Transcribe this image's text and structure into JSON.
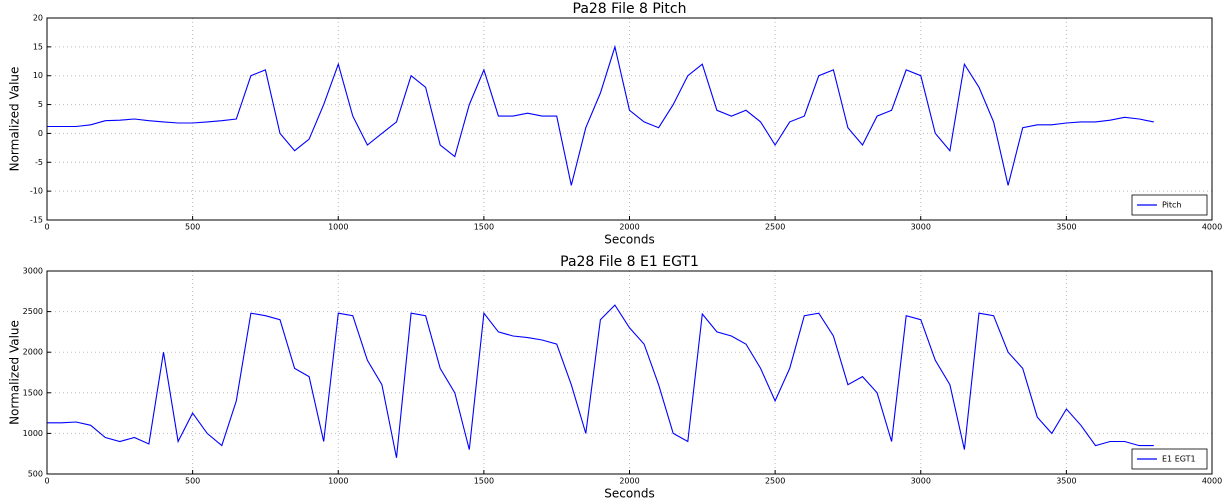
{
  "chart_data": [
    {
      "type": "line",
      "title": "Pa28 File 8 Pitch",
      "xlabel": "Seconds",
      "ylabel": "Normalized Value",
      "x": [
        0,
        50,
        100,
        150,
        200,
        250,
        300,
        350,
        400,
        450,
        500,
        550,
        600,
        650,
        700,
        750,
        800,
        850,
        900,
        950,
        1000,
        1050,
        1100,
        1150,
        1200,
        1250,
        1300,
        1350,
        1400,
        1450,
        1500,
        1550,
        1600,
        1650,
        1700,
        1750,
        1800,
        1850,
        1900,
        1950,
        2000,
        2050,
        2100,
        2150,
        2200,
        2250,
        2300,
        2350,
        2400,
        2450,
        2500,
        2550,
        2600,
        2650,
        2700,
        2750,
        2800,
        2850,
        2900,
        2950,
        3000,
        3050,
        3100,
        3150,
        3200,
        3250,
        3300,
        3350,
        3400,
        3450,
        3500,
        3550,
        3600,
        3650,
        3700,
        3750,
        3800
      ],
      "series": [
        {
          "name": "Pitch",
          "color": "#0000ff",
          "values": [
            1.2,
            1.2,
            1.2,
            1.5,
            2.2,
            2.3,
            2.5,
            2.2,
            2.0,
            1.8,
            1.8,
            2.0,
            2.2,
            2.5,
            10,
            11,
            0,
            -3,
            -1,
            5,
            12,
            3,
            -2,
            0,
            2,
            10,
            8,
            -2,
            -4,
            5,
            11,
            3,
            3,
            3.5,
            3,
            3,
            -9,
            1,
            7,
            15,
            4,
            2,
            1,
            5,
            10,
            12,
            4,
            3,
            4,
            2,
            -2,
            2,
            3,
            10,
            11,
            1,
            -2,
            3,
            4,
            11,
            10,
            0,
            -3,
            12,
            8,
            2,
            -9,
            1,
            1.5,
            1.5,
            1.8,
            2,
            2,
            2.3,
            2.8,
            2.5,
            2.0
          ]
        }
      ],
      "xlim": [
        0,
        4000
      ],
      "xticks": [
        0,
        500,
        1000,
        1500,
        2000,
        2500,
        3000,
        3500,
        4000
      ],
      "ylim": [
        -15,
        20
      ],
      "yticks": [
        -15,
        -10,
        -5,
        0,
        5,
        10,
        15,
        20
      ],
      "grid": true,
      "legend": "lower right"
    },
    {
      "type": "line",
      "title": "Pa28 File 8 E1 EGT1",
      "xlabel": "Seconds",
      "ylabel": "Normalized Value",
      "x": [
        0,
        50,
        100,
        150,
        200,
        250,
        300,
        350,
        400,
        450,
        500,
        550,
        600,
        650,
        700,
        750,
        800,
        850,
        900,
        950,
        1000,
        1050,
        1100,
        1150,
        1200,
        1250,
        1300,
        1350,
        1400,
        1450,
        1500,
        1550,
        1600,
        1650,
        1700,
        1750,
        1800,
        1850,
        1900,
        1950,
        2000,
        2050,
        2100,
        2150,
        2200,
        2250,
        2300,
        2350,
        2400,
        2450,
        2500,
        2550,
        2600,
        2650,
        2700,
        2750,
        2800,
        2850,
        2900,
        2950,
        3000,
        3050,
        3100,
        3150,
        3200,
        3250,
        3300,
        3350,
        3400,
        3450,
        3500,
        3550,
        3600,
        3650,
        3700,
        3750,
        3800
      ],
      "series": [
        {
          "name": "E1 EGT1",
          "color": "#0000ff",
          "values": [
            1130,
            1130,
            1140,
            1100,
            950,
            900,
            950,
            870,
            2000,
            900,
            1250,
            1000,
            850,
            1400,
            2480,
            2450,
            2400,
            1800,
            1700,
            900,
            2480,
            2450,
            1900,
            1600,
            700,
            2480,
            2450,
            1800,
            1500,
            800,
            2480,
            2250,
            2200,
            2180,
            2150,
            2100,
            1600,
            1000,
            2400,
            2580,
            2300,
            2100,
            1600,
            1000,
            900,
            2470,
            2250,
            2200,
            2100,
            1800,
            1400,
            1800,
            2450,
            2480,
            2200,
            1600,
            1700,
            1500,
            900,
            2450,
            2400,
            1900,
            1600,
            800,
            2480,
            2450,
            2000,
            1800,
            1200,
            1000,
            1300,
            1100,
            850,
            900,
            900,
            850,
            850
          ]
        }
      ],
      "xlim": [
        0,
        4000
      ],
      "xticks": [
        0,
        500,
        1000,
        1500,
        2000,
        2500,
        3000,
        3500,
        4000
      ],
      "ylim": [
        500,
        3000
      ],
      "yticks": [
        500,
        1000,
        1500,
        2000,
        2500,
        3000
      ],
      "grid": true,
      "legend": "lower right"
    }
  ]
}
